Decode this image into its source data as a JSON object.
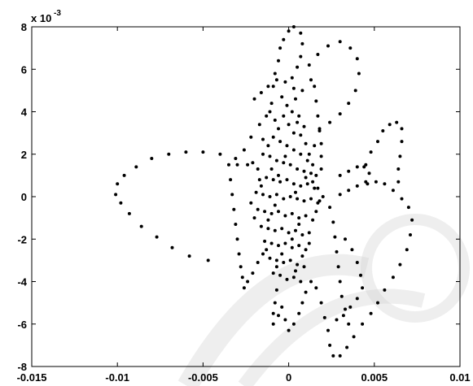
{
  "chart_data": {
    "type": "scatter",
    "title": "",
    "xlabel": "",
    "ylabel": "",
    "xlim": [
      -0.015,
      0.01
    ],
    "ylim": [
      -0.008,
      0.008
    ],
    "grid": false,
    "exponent_label": {
      "base": "x 10",
      "power": "-3"
    },
    "x_ticks": [
      {
        "value": -0.015,
        "label": "-0.015"
      },
      {
        "value": -0.01,
        "label": "-0.01"
      },
      {
        "value": -0.005,
        "label": "-0.005"
      },
      {
        "value": 0,
        "label": "0"
      },
      {
        "value": 0.005,
        "label": "0.005"
      },
      {
        "value": 0.01,
        "label": "0.01"
      }
    ],
    "y_ticks": [
      {
        "value": -0.008,
        "label": "-8"
      },
      {
        "value": -0.006,
        "label": "-6"
      },
      {
        "value": -0.004,
        "label": "-4"
      },
      {
        "value": -0.002,
        "label": "-2"
      },
      {
        "value": 0,
        "label": "0"
      },
      {
        "value": 0.002,
        "label": "2"
      },
      {
        "value": 0.004,
        "label": "4"
      },
      {
        "value": 0.006,
        "label": "6"
      },
      {
        "value": 0.008,
        "label": "8"
      }
    ],
    "series": [
      {
        "color": "#000000",
        "points": [
          [
            -0.0047,
            -0.003
          ],
          [
            -0.0058,
            -0.0028
          ],
          [
            -0.0068,
            -0.0024
          ],
          [
            -0.0077,
            -0.0019
          ],
          [
            -0.0086,
            -0.0014
          ],
          [
            -0.0093,
            -0.0008
          ],
          [
            -0.0098,
            -0.0003
          ],
          [
            -0.0101,
            0.0001
          ],
          [
            -0.01,
            0.0006
          ],
          [
            -0.0096,
            0.001
          ],
          [
            -0.0089,
            0.0014
          ],
          [
            -0.008,
            0.0018
          ],
          [
            -0.007,
            0.002
          ],
          [
            -0.006,
            0.0021
          ],
          [
            -0.005,
            0.0021
          ],
          [
            -0.004,
            0.002
          ],
          [
            -0.0031,
            0.0018
          ],
          [
            -0.0024,
            0.0015
          ],
          [
            -0.0018,
            0.0013
          ],
          [
            -0.003,
            0.0015
          ],
          [
            -0.0026,
            0.0022
          ],
          [
            -0.0022,
            0.0028
          ],
          [
            -0.0017,
            0.0034
          ],
          [
            -0.0013,
            0.0038
          ],
          [
            -0.001,
            0.0044
          ],
          [
            -0.0009,
            0.0052
          ],
          [
            -0.0008,
            0.0058
          ],
          [
            -0.0006,
            0.0064
          ],
          [
            -0.0005,
            0.007
          ],
          [
            -0.0003,
            0.0074
          ],
          [
            0.0,
            0.0078
          ],
          [
            0.0003,
            0.008
          ],
          [
            0.0007,
            0.0077
          ],
          [
            0.0008,
            0.0072
          ],
          [
            0.0007,
            0.0066
          ],
          [
            0.0005,
            0.0061
          ],
          [
            0.0002,
            0.0056
          ],
          [
            0.0012,
            0.0062
          ],
          [
            0.0017,
            0.0067
          ],
          [
            0.0023,
            0.0071
          ],
          [
            0.003,
            0.0073
          ],
          [
            0.0036,
            0.007
          ],
          [
            0.004,
            0.0065
          ],
          [
            0.0041,
            0.0058
          ],
          [
            0.0039,
            0.005
          ],
          [
            0.0035,
            0.0044
          ],
          [
            0.003,
            0.0039
          ],
          [
            0.0024,
            0.0035
          ],
          [
            0.0018,
            0.0032
          ],
          [
            -0.002,
            0.0046
          ],
          [
            -0.0016,
            0.0049
          ],
          [
            -0.0012,
            0.0052
          ],
          [
            -0.0007,
            0.0055
          ],
          [
            -0.0002,
            0.0054
          ],
          [
            0.0003,
            0.0051
          ],
          [
            0.0008,
            0.005
          ],
          [
            0.0013,
            0.0055
          ],
          [
            0.0015,
            0.0052
          ],
          [
            0.0016,
            0.0045
          ],
          [
            0.0017,
            0.0038
          ],
          [
            0.0018,
            0.0031
          ],
          [
            0.0019,
            0.0025
          ],
          [
            0.0019,
            0.0019
          ],
          [
            -0.0035,
            0.0015
          ],
          [
            -0.0034,
            0.0008
          ],
          [
            -0.0033,
            0.0001
          ],
          [
            -0.0032,
            -0.0006
          ],
          [
            -0.0031,
            -0.0013
          ],
          [
            -0.003,
            -0.002
          ],
          [
            -0.0029,
            -0.0027
          ],
          [
            -0.0028,
            -0.0033
          ],
          [
            -0.0027,
            -0.0038
          ],
          [
            -0.0026,
            -0.0043
          ],
          [
            -0.0024,
            -0.004
          ],
          [
            -0.0021,
            -0.0036
          ],
          [
            -0.0018,
            -0.0031
          ],
          [
            -0.0015,
            -0.0027
          ],
          [
            -0.0007,
            -0.0044
          ],
          [
            -0.0008,
            -0.005
          ],
          [
            -0.0009,
            -0.0055
          ],
          [
            -0.0009,
            -0.006
          ],
          [
            -0.0006,
            -0.0056
          ],
          [
            -0.0004,
            -0.0052
          ],
          [
            -0.0002,
            -0.0058
          ],
          [
            0.0,
            -0.0063
          ],
          [
            0.0003,
            -0.006
          ],
          [
            0.0006,
            -0.0055
          ],
          [
            0.0008,
            -0.005
          ],
          [
            0.001,
            -0.0045
          ],
          [
            0.0013,
            -0.004
          ],
          [
            0.0016,
            -0.0043
          ],
          [
            0.0019,
            -0.005
          ],
          [
            0.0021,
            -0.0057
          ],
          [
            0.0023,
            -0.0063
          ],
          [
            0.0024,
            -0.007
          ],
          [
            0.0026,
            -0.0075
          ],
          [
            0.003,
            -0.0075
          ],
          [
            0.0034,
            -0.0071
          ],
          [
            0.0038,
            -0.0066
          ],
          [
            0.0043,
            -0.006
          ],
          [
            0.0048,
            -0.0055
          ],
          [
            0.0052,
            -0.005
          ],
          [
            0.0056,
            -0.0044
          ],
          [
            0.0061,
            -0.0038
          ],
          [
            0.0065,
            -0.0032
          ],
          [
            0.0069,
            -0.0025
          ],
          [
            0.0071,
            -0.0018
          ],
          [
            0.0072,
            -0.0011
          ],
          [
            0.007,
            -0.0005
          ],
          [
            0.0066,
            -0.0001
          ],
          [
            0.0061,
            0.0003
          ],
          [
            0.0056,
            0.0006
          ],
          [
            0.0051,
            0.0007
          ],
          [
            0.0045,
            0.0007
          ],
          [
            0.004,
            0.0005
          ],
          [
            0.0035,
            0.0003
          ],
          [
            0.003,
            0.0001
          ],
          [
            0.003,
            0.001
          ],
          [
            0.0035,
            0.0012
          ],
          [
            0.004,
            0.0014
          ],
          [
            0.0044,
            0.0014
          ],
          [
            0.0047,
            0.0011
          ],
          [
            0.0046,
            0.0006
          ],
          [
            0.0045,
            0.0015
          ],
          [
            0.0048,
            0.0021
          ],
          [
            0.0052,
            0.0026
          ],
          [
            0.0055,
            0.0031
          ],
          [
            0.0059,
            0.0034
          ],
          [
            0.0063,
            0.0035
          ],
          [
            0.0066,
            0.0032
          ],
          [
            0.0066,
            0.0026
          ],
          [
            0.0065,
            0.0019
          ],
          [
            0.0064,
            0.0013
          ],
          [
            0.0064,
            0.0007
          ],
          [
            0.0033,
            -0.002
          ],
          [
            0.0037,
            -0.0025
          ],
          [
            0.004,
            -0.0031
          ],
          [
            0.0042,
            -0.0037
          ],
          [
            0.0043,
            -0.0043
          ],
          [
            0.004,
            -0.0048
          ],
          [
            0.0036,
            -0.0052
          ],
          [
            0.0032,
            -0.0056
          ],
          [
            0.0028,
            -0.0058
          ],
          [
            0.0024,
            -0.0005
          ],
          [
            0.0026,
            -0.0012
          ],
          [
            0.0027,
            -0.0019
          ],
          [
            0.0028,
            -0.0026
          ],
          [
            0.0029,
            -0.0033
          ],
          [
            0.003,
            -0.004
          ],
          [
            0.0031,
            -0.0047
          ],
          [
            0.0033,
            -0.0053
          ],
          [
            0.0035,
            -0.006
          ],
          [
            0.0005,
            0.0035
          ],
          [
            0.0007,
            0.0029
          ],
          [
            0.001,
            0.0025
          ],
          [
            0.0012,
            0.002
          ],
          [
            0.0014,
            0.0015
          ],
          [
            0.0016,
            0.001
          ],
          [
            0.0017,
            0.0004
          ],
          [
            0.0018,
            -0.0002
          ],
          [
            -0.0004,
            0.0047
          ],
          [
            -0.0001,
            0.0043
          ],
          [
            0.0002,
            0.004
          ],
          [
            0.0004,
            0.0046
          ],
          [
            -0.0003,
            0.0038
          ],
          [
            0.0,
            0.0034
          ],
          [
            0.0003,
            0.003
          ],
          [
            -0.0006,
            0.0032
          ],
          [
            -0.0009,
            0.0028
          ],
          [
            -0.0005,
            0.0026
          ],
          [
            -0.0001,
            0.0024
          ],
          [
            0.0003,
            0.0022
          ],
          [
            0.0007,
            0.002
          ],
          [
            -0.0012,
            0.0024
          ],
          [
            -0.0015,
            0.002
          ],
          [
            -0.0011,
            0.0019
          ],
          [
            -0.0007,
            0.0017
          ],
          [
            -0.0003,
            0.0016
          ],
          [
            0.0001,
            0.0015
          ],
          [
            0.0005,
            0.0013
          ],
          [
            0.0009,
            0.0012
          ],
          [
            0.0013,
            0.0011
          ],
          [
            -0.0017,
            0.0008
          ],
          [
            -0.0013,
            0.0009
          ],
          [
            -0.0009,
            0.0008
          ],
          [
            -0.0005,
            0.0007
          ],
          [
            -0.0001,
            0.0008
          ],
          [
            0.0003,
            0.0006
          ],
          [
            0.0007,
            0.0005
          ],
          [
            0.0011,
            0.0006
          ],
          [
            0.0015,
            0.0004
          ],
          [
            -0.0019,
            0.0002
          ],
          [
            -0.0015,
            0.0001
          ],
          [
            -0.0011,
            0.0
          ],
          [
            -0.0007,
            0.0001
          ],
          [
            -0.0003,
            -0.0001
          ],
          [
            0.0001,
            0.0
          ],
          [
            0.0005,
            -0.0001
          ],
          [
            0.0009,
            -0.0002
          ],
          [
            0.0013,
            -0.0001
          ],
          [
            0.0017,
            -0.0003
          ],
          [
            -0.0018,
            -0.0006
          ],
          [
            -0.0014,
            -0.0007
          ],
          [
            -0.001,
            -0.0008
          ],
          [
            -0.0006,
            -0.0007
          ],
          [
            -0.0002,
            -0.0009
          ],
          [
            0.0002,
            -0.0008
          ],
          [
            0.0006,
            -0.001
          ],
          [
            0.001,
            -0.0009
          ],
          [
            0.0014,
            -0.0011
          ],
          [
            -0.0016,
            -0.0014
          ],
          [
            -0.0012,
            -0.0015
          ],
          [
            -0.0008,
            -0.0016
          ],
          [
            -0.0004,
            -0.0015
          ],
          [
            0.0,
            -0.0017
          ],
          [
            0.0004,
            -0.0016
          ],
          [
            0.0008,
            -0.0018
          ],
          [
            0.0012,
            -0.0017
          ],
          [
            -0.0014,
            -0.0021
          ],
          [
            -0.001,
            -0.0022
          ],
          [
            -0.0006,
            -0.0023
          ],
          [
            -0.0002,
            -0.0022
          ],
          [
            0.0002,
            -0.0024
          ],
          [
            0.0006,
            -0.0023
          ],
          [
            0.001,
            -0.0025
          ],
          [
            -0.0011,
            -0.0029
          ],
          [
            -0.0007,
            -0.003
          ],
          [
            -0.0003,
            -0.0031
          ],
          [
            0.0001,
            -0.003
          ],
          [
            0.0005,
            -0.0032
          ],
          [
            0.0009,
            -0.0033
          ],
          [
            -0.0009,
            -0.0036
          ],
          [
            -0.0005,
            -0.0037
          ],
          [
            -0.0001,
            -0.0039
          ],
          [
            0.0003,
            -0.0038
          ],
          [
            0.0007,
            -0.004
          ],
          [
            -0.0006,
            0.001
          ],
          [
            0.0004,
            0.0002
          ],
          [
            -0.0008,
            -0.0004
          ],
          [
            0.0006,
            -0.0013
          ],
          [
            -0.0012,
            -0.0011
          ],
          [
            0.0002,
            -0.002
          ],
          [
            -0.0004,
            -0.0027
          ],
          [
            0.0008,
            -0.0028
          ],
          [
            -0.0016,
            0.0005
          ],
          [
            0.001,
            0.0009
          ],
          [
            -0.0002,
            0.0019
          ],
          [
            0.0011,
            0.0017
          ],
          [
            -0.001,
            0.0013
          ],
          [
            0.0014,
            0.0007
          ],
          [
            -0.002,
            -0.001
          ],
          [
            0.0016,
            -0.0007
          ],
          [
            -0.0013,
            -0.0025
          ],
          [
            0.0004,
            -0.0035
          ],
          [
            -0.0007,
            -0.0033
          ],
          [
            0.0012,
            -0.0022
          ],
          [
            -0.0008,
            0.0036
          ],
          [
            0.0009,
            0.0033
          ],
          [
            -0.0011,
            0.004
          ],
          [
            0.0006,
            0.0038
          ],
          [
            -0.0015,
            0.0027
          ],
          [
            0.0015,
            0.0024
          ],
          [
            -0.0021,
            0.0016
          ],
          [
            0.0019,
            0.0013
          ],
          [
            -0.0022,
            -0.0003
          ],
          [
            0.002,
            0.0
          ]
        ]
      }
    ]
  }
}
